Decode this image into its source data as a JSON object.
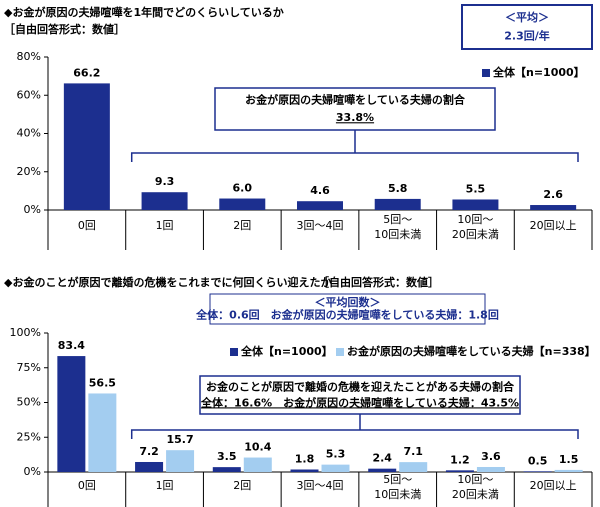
{
  "chart_data": [
    {
      "type": "bar",
      "title": "◆お金が原因の夫婦喧嘩を1年間でどのくらいしているか",
      "subtitle": "［自由回答形式：数値］",
      "average_label": "＜平均＞",
      "average_value": "2.3回/年",
      "note_title": "お金が原因の夫婦喧嘩をしている夫婦の割合",
      "note_value": "33.8%",
      "categories": [
        "0回",
        "1回",
        "2回",
        "3回～4回",
        "5回～\n10回未満",
        "10回～\n20回未満",
        "20回以上"
      ],
      "series": [
        {
          "name": "全体【n=1000】",
          "color": "#1c2f8f",
          "values": [
            66.2,
            9.3,
            6.0,
            4.6,
            5.8,
            5.5,
            2.6
          ],
          "value_labels": [
            "66.2",
            "9.3",
            "6.0",
            "4.6",
            "5.8",
            "5.5",
            "2.6"
          ]
        }
      ],
      "ylim": [
        0,
        80
      ],
      "yticks": [
        {
          "value": 0,
          "label": "0%"
        },
        {
          "value": 20,
          "label": "20%"
        },
        {
          "value": 40,
          "label": "40%"
        },
        {
          "value": 60,
          "label": "60%"
        },
        {
          "value": 80,
          "label": "80%"
        }
      ],
      "legend": "upper right"
    },
    {
      "type": "bar",
      "title": "◆お金のことが原因で離婚の危機をこれまでに何回くらい迎えたか",
      "subtitle": "［自由回答形式：数値］",
      "average_label": "＜平均回数＞",
      "average_value": "全体：0.6回　お金が原因の夫婦喧嘩をしている夫婦：1.8回",
      "note_title": "お金のことが原因で離婚の危機を迎えたことがある夫婦の割合",
      "note_value": "全体：16.6%　お金が原因の夫婦喧嘩をしている夫婦：43.5%",
      "categories": [
        "0回",
        "1回",
        "2回",
        "3回～4回",
        "5回～\n10回未満",
        "10回～\n20回未満",
        "20回以上"
      ],
      "series": [
        {
          "name": "全体【n=1000】",
          "color": "#1c2f8f",
          "values": [
            83.4,
            7.2,
            3.5,
            1.8,
            2.4,
            1.2,
            0.5
          ]
        },
        {
          "name": "お金が原因の夫婦喧嘩をしている夫婦【n=338】",
          "color": "#a3cdf0",
          "values": [
            56.5,
            15.7,
            10.4,
            5.3,
            7.1,
            3.6,
            1.5
          ]
        }
      ],
      "ylim": [
        0,
        100
      ],
      "yticks": [
        {
          "value": 0,
          "label": "0%"
        },
        {
          "value": 25,
          "label": "25%"
        },
        {
          "value": 50,
          "label": "50%"
        },
        {
          "value": 75,
          "label": "75%"
        },
        {
          "value": 100,
          "label": "100%"
        }
      ],
      "legend": "upper center"
    }
  ]
}
